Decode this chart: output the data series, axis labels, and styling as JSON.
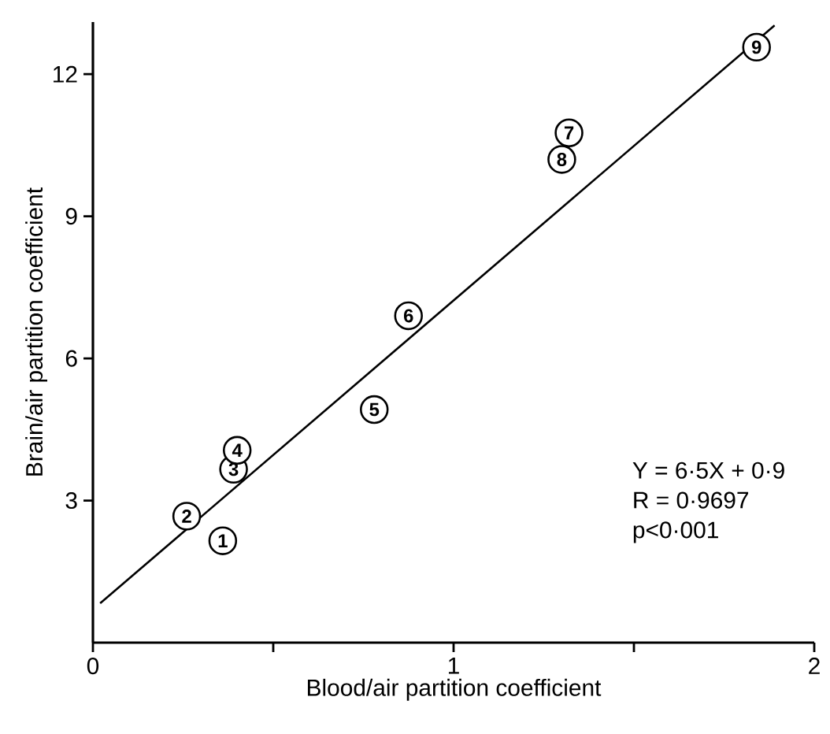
{
  "chart_data": {
    "type": "scatter",
    "xlabel": "Blood/air partition coefficient",
    "ylabel": "Brain/air partition coefficient",
    "xlim": [
      0,
      2
    ],
    "ylim": [
      0,
      13.1
    ],
    "xticks": [
      0,
      {
        "value": 0.5,
        "label": null
      },
      1,
      {
        "value": 1.5,
        "label": null
      },
      2
    ],
    "yticks": [
      3,
      6,
      9,
      12
    ],
    "grid": false,
    "marker": "circle",
    "series": [
      {
        "type": "line",
        "x": [
          0.02,
          1.89
        ],
        "values": [
          0.83,
          13.03
        ],
        "color": "#000000",
        "line_style": "solid",
        "marker": "none"
      },
      {
        "x": [
          0.36,
          0.26,
          0.39,
          0.4,
          0.78,
          0.875,
          1.32,
          1.3,
          1.84
        ],
        "values": [
          2.15,
          2.67,
          3.66,
          4.06,
          4.92,
          6.9,
          10.76,
          10.2,
          12.57
        ],
        "color": "#000000"
      }
    ],
    "annotations": [
      {
        "text": "1",
        "x": 0.36,
        "y": 2.15
      },
      {
        "text": "2",
        "x": 0.26,
        "y": 2.67
      },
      {
        "text": "3",
        "x": 0.39,
        "y": 3.66
      },
      {
        "text": "4",
        "x": 0.4,
        "y": 4.06
      },
      {
        "text": "5",
        "x": 0.78,
        "y": 4.92
      },
      {
        "text": "6",
        "x": 0.875,
        "y": 6.9
      },
      {
        "text": "7",
        "x": 1.32,
        "y": 10.76
      },
      {
        "text": "8",
        "x": 1.3,
        "y": 10.2
      },
      {
        "text": "9",
        "x": 1.84,
        "y": 12.57
      },
      "Y = 6·5X + 0·9",
      "R = 0·9697",
      "p<0·001"
    ]
  }
}
